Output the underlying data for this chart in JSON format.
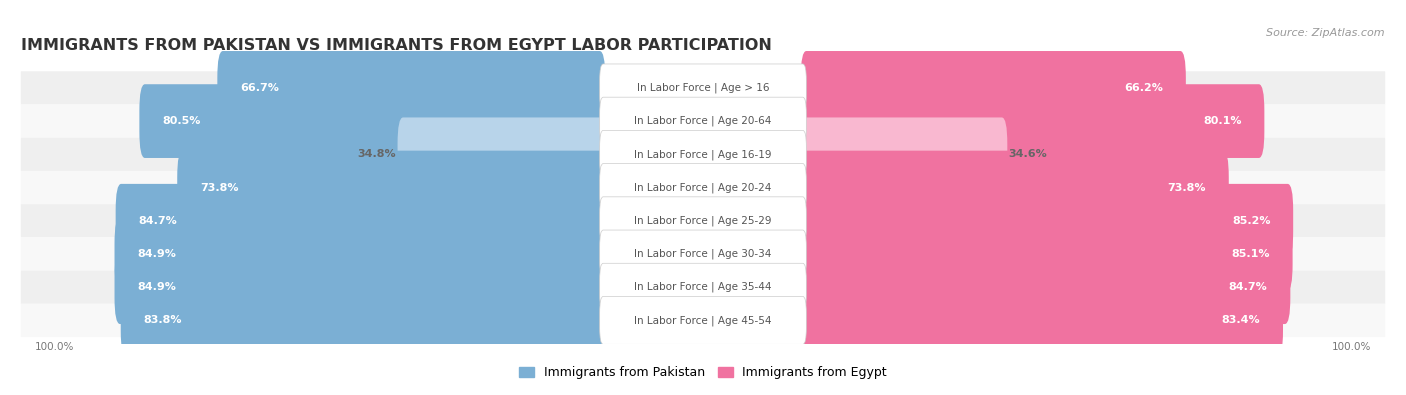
{
  "title": "IMMIGRANTS FROM PAKISTAN VS IMMIGRANTS FROM EGYPT LABOR PARTICIPATION",
  "source": "Source: ZipAtlas.com",
  "categories": [
    "In Labor Force | Age > 16",
    "In Labor Force | Age 20-64",
    "In Labor Force | Age 16-19",
    "In Labor Force | Age 20-24",
    "In Labor Force | Age 25-29",
    "In Labor Force | Age 30-34",
    "In Labor Force | Age 35-44",
    "In Labor Force | Age 45-54"
  ],
  "pakistan_values": [
    66.7,
    80.5,
    34.8,
    73.8,
    84.7,
    84.9,
    84.9,
    83.8
  ],
  "egypt_values": [
    66.2,
    80.1,
    34.6,
    73.8,
    85.2,
    85.1,
    84.7,
    83.4
  ],
  "pakistan_color_strong": "#7bafd4",
  "pakistan_color_light": "#b8d4ea",
  "egypt_color_strong": "#f072a0",
  "egypt_color_light": "#f9b8d0",
  "row_bg_even": "#efefef",
  "row_bg_odd": "#f8f8f8",
  "bar_height": 0.62,
  "title_fontsize": 11.5,
  "value_fontsize": 8,
  "cat_fontsize": 7.5,
  "legend_fontsize": 9,
  "source_fontsize": 8,
  "threshold": 50
}
